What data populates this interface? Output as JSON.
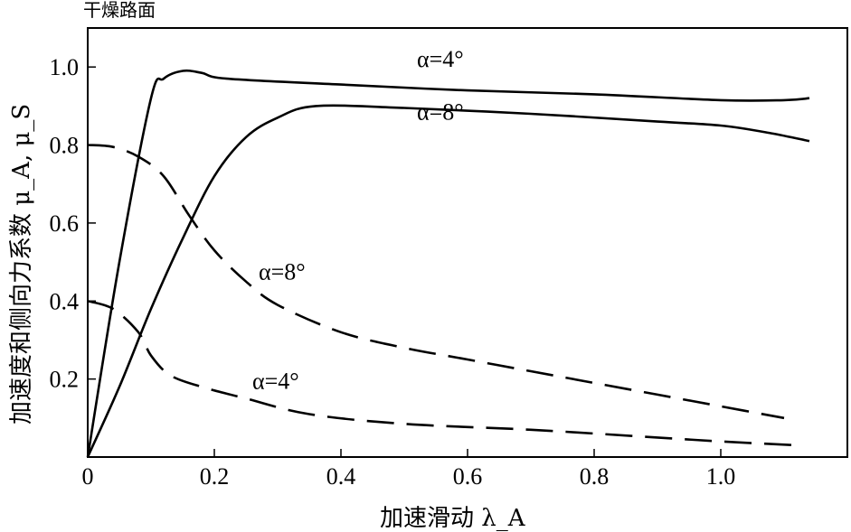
{
  "chart_data": {
    "type": "line",
    "title": "干燥路面",
    "xlabel": "加速滑动 λ_A",
    "ylabel": "加速度和侧向力系数 μ_A, μ_S",
    "xlim": [
      0,
      1.2
    ],
    "ylim": [
      0,
      1.1
    ],
    "x_ticks": [
      "0",
      "0.2",
      "0.4",
      "0.6",
      "0.8",
      "1.0"
    ],
    "x_tick_values": [
      0,
      0.2,
      0.4,
      0.6,
      0.8,
      1.0
    ],
    "y_ticks": [
      "0.2",
      "0.4",
      "0.6",
      "0.8",
      "1.0"
    ],
    "y_tick_values": [
      0.2,
      0.4,
      0.6,
      0.8,
      1.0
    ],
    "grid": false,
    "series": [
      {
        "name": "α=4° (μ_A)",
        "style": "solid",
        "points": [
          [
            0,
            0
          ],
          [
            0.05,
            0.5
          ],
          [
            0.1,
            0.92
          ],
          [
            0.12,
            0.97
          ],
          [
            0.15,
            0.99
          ],
          [
            0.18,
            0.985
          ],
          [
            0.22,
            0.97
          ],
          [
            0.4,
            0.955
          ],
          [
            0.6,
            0.94
          ],
          [
            0.8,
            0.93
          ],
          [
            1.0,
            0.915
          ],
          [
            1.1,
            0.915
          ],
          [
            1.14,
            0.92
          ]
        ]
      },
      {
        "name": "α=8° (μ_A)",
        "style": "solid",
        "points": [
          [
            0,
            0
          ],
          [
            0.05,
            0.18
          ],
          [
            0.1,
            0.38
          ],
          [
            0.15,
            0.56
          ],
          [
            0.2,
            0.72
          ],
          [
            0.25,
            0.82
          ],
          [
            0.3,
            0.87
          ],
          [
            0.36,
            0.9
          ],
          [
            0.5,
            0.895
          ],
          [
            0.7,
            0.88
          ],
          [
            0.9,
            0.86
          ],
          [
            1.0,
            0.85
          ],
          [
            1.08,
            0.83
          ],
          [
            1.14,
            0.81
          ]
        ]
      },
      {
        "name": "α=8° (μ_S)",
        "style": "dashed",
        "points": [
          [
            0,
            0.8
          ],
          [
            0.04,
            0.795
          ],
          [
            0.08,
            0.77
          ],
          [
            0.12,
            0.72
          ],
          [
            0.16,
            0.62
          ],
          [
            0.2,
            0.53
          ],
          [
            0.25,
            0.45
          ],
          [
            0.3,
            0.39
          ],
          [
            0.4,
            0.32
          ],
          [
            0.5,
            0.28
          ],
          [
            0.6,
            0.25
          ],
          [
            0.7,
            0.22
          ],
          [
            0.8,
            0.19
          ],
          [
            0.9,
            0.16
          ],
          [
            1.0,
            0.13
          ],
          [
            1.1,
            0.1
          ]
        ]
      },
      {
        "name": "α=4° (μ_S)",
        "style": "dashed",
        "points": [
          [
            0,
            0.4
          ],
          [
            0.04,
            0.38
          ],
          [
            0.08,
            0.32
          ],
          [
            0.1,
            0.26
          ],
          [
            0.13,
            0.21
          ],
          [
            0.18,
            0.18
          ],
          [
            0.25,
            0.15
          ],
          [
            0.35,
            0.11
          ],
          [
            0.5,
            0.085
          ],
          [
            0.7,
            0.07
          ],
          [
            0.9,
            0.05
          ],
          [
            1.0,
            0.04
          ],
          [
            1.12,
            0.03
          ]
        ]
      }
    ],
    "annotations": [
      {
        "text": "α=4°",
        "x": 0.52,
        "y": 1.0
      },
      {
        "text": "α=8°",
        "x": 0.52,
        "y": 0.865
      },
      {
        "text": "α=8°",
        "x": 0.27,
        "y": 0.455
      },
      {
        "text": "α=4°",
        "x": 0.26,
        "y": 0.175
      }
    ]
  }
}
